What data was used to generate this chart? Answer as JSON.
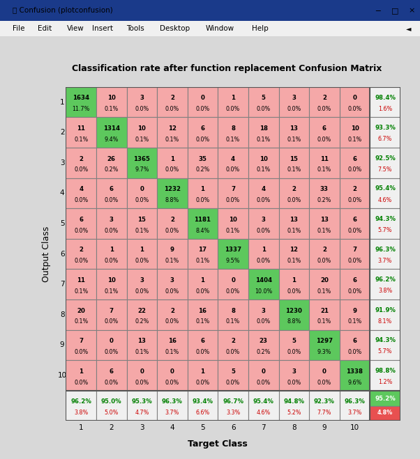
{
  "title": "Classification rate after function replacement Confusion Matrix",
  "matrix": [
    [
      1634,
      10,
      3,
      2,
      0,
      1,
      5,
      3,
      2,
      0
    ],
    [
      11,
      1314,
      10,
      12,
      6,
      8,
      18,
      13,
      6,
      10
    ],
    [
      2,
      26,
      1365,
      1,
      35,
      4,
      10,
      15,
      11,
      6
    ],
    [
      4,
      6,
      0,
      1232,
      1,
      7,
      4,
      2,
      33,
      2
    ],
    [
      6,
      3,
      15,
      2,
      1181,
      10,
      3,
      13,
      13,
      6
    ],
    [
      2,
      1,
      1,
      9,
      17,
      1337,
      1,
      12,
      2,
      7
    ],
    [
      11,
      10,
      3,
      3,
      1,
      0,
      1404,
      1,
      20,
      6
    ],
    [
      20,
      7,
      22,
      2,
      16,
      8,
      3,
      1230,
      21,
      9
    ],
    [
      7,
      0,
      13,
      16,
      6,
      2,
      23,
      5,
      1297,
      6
    ],
    [
      1,
      6,
      0,
      0,
      1,
      5,
      0,
      3,
      0,
      1338
    ]
  ],
  "pct_matrix": [
    [
      11.7,
      0.1,
      0.0,
      0.0,
      0.0,
      0.0,
      0.0,
      0.0,
      0.0,
      0.0
    ],
    [
      0.1,
      9.4,
      0.1,
      0.1,
      0.0,
      0.1,
      0.1,
      0.1,
      0.0,
      0.1
    ],
    [
      0.0,
      0.2,
      9.7,
      0.0,
      0.2,
      0.0,
      0.1,
      0.1,
      0.1,
      0.0
    ],
    [
      0.0,
      0.0,
      0.0,
      8.8,
      0.0,
      0.0,
      0.0,
      0.0,
      0.2,
      0.0
    ],
    [
      0.0,
      0.0,
      0.1,
      0.0,
      8.4,
      0.1,
      0.0,
      0.1,
      0.1,
      0.0
    ],
    [
      0.0,
      0.0,
      0.0,
      0.1,
      0.1,
      9.5,
      0.0,
      0.1,
      0.0,
      0.0
    ],
    [
      0.1,
      0.1,
      0.0,
      0.0,
      0.0,
      0.0,
      10.0,
      0.0,
      0.1,
      0.0
    ],
    [
      0.1,
      0.0,
      0.2,
      0.0,
      0.1,
      0.1,
      0.0,
      8.8,
      0.1,
      0.1
    ],
    [
      0.0,
      0.0,
      0.1,
      0.1,
      0.0,
      0.0,
      0.2,
      0.0,
      9.3,
      0.0
    ],
    [
      0.0,
      0.0,
      0.0,
      0.0,
      0.0,
      0.0,
      0.0,
      0.0,
      0.0,
      9.6
    ]
  ],
  "row_correct": [
    98.4,
    93.3,
    92.5,
    95.4,
    94.3,
    96.3,
    96.2,
    91.9,
    94.3,
    98.8
  ],
  "row_error": [
    1.6,
    6.7,
    7.5,
    4.6,
    5.7,
    3.7,
    3.8,
    8.1,
    5.7,
    1.2
  ],
  "col_correct": [
    96.2,
    95.0,
    95.3,
    96.3,
    93.4,
    96.7,
    95.4,
    94.8,
    92.3,
    96.3
  ],
  "col_error": [
    3.8,
    5.0,
    4.7,
    3.7,
    6.6,
    3.3,
    4.6,
    5.2,
    7.7,
    3.7
  ],
  "overall_correct": 95.2,
  "overall_error": 4.8,
  "xlabel": "Target Class",
  "ylabel": "Output Class",
  "diag_color": "#5dc85d",
  "off_diag_color": "#f5a8a8",
  "summary_bg": "#f0f0f0",
  "overall_correct_bg": "#5dc85d",
  "overall_error_bg": "#e85050",
  "green_text": "#008000",
  "red_text": "#cc0000",
  "window_bg": "#d8d8d8",
  "plot_bg": "#e8e8e8",
  "titlebar_color": "#1a3a8a",
  "menubar_color": "#f0f0f0",
  "grid_color": "#808080",
  "title_bar_text": "Confusion (plotconfusion)",
  "menu_items": [
    "File",
    "Edit",
    "View",
    "Insert",
    "Tools",
    "Desktop",
    "Window",
    "Help"
  ]
}
